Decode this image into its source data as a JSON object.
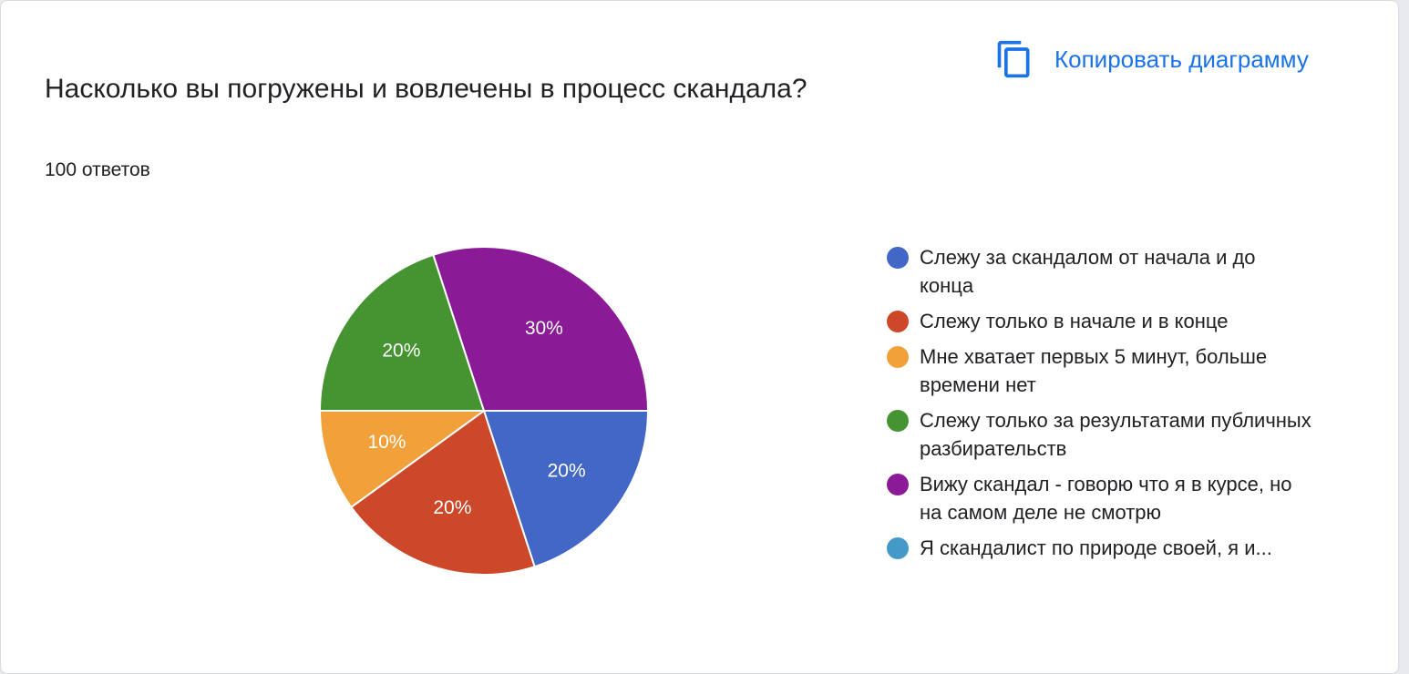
{
  "header": {
    "copy_label": "Копировать диаграмму",
    "copy_icon": "copy-icon"
  },
  "chart_data": {
    "type": "pie",
    "title": "Насколько вы погружены и вовлечены в процесс скандала?",
    "subtitle": "100 ответов",
    "legend_position": "right",
    "slices": [
      {
        "label": "Слежу за скандалом от начала и до конца",
        "value": 20,
        "display": "20%",
        "color": "#4267c7"
      },
      {
        "label": "Слежу только в начале и в конце",
        "value": 20,
        "display": "20%",
        "color": "#cc4829"
      },
      {
        "label": "Мне хватает первых 5 минут, больше времени нет",
        "value": 10,
        "display": "10%",
        "color": "#f2a13a"
      },
      {
        "label": "Слежу только за результатами публичных разбирательств",
        "value": 20,
        "display": "20%",
        "color": "#469331"
      },
      {
        "label": "Вижу скандал - говорю что я в курсе, но на самом деле не смотрю",
        "value": 30,
        "display": "30%",
        "color": "#8b1a96"
      },
      {
        "label": "Я скандалист по природе своей, я и...",
        "value": 0,
        "display": "",
        "color": "#4599c9"
      }
    ]
  }
}
